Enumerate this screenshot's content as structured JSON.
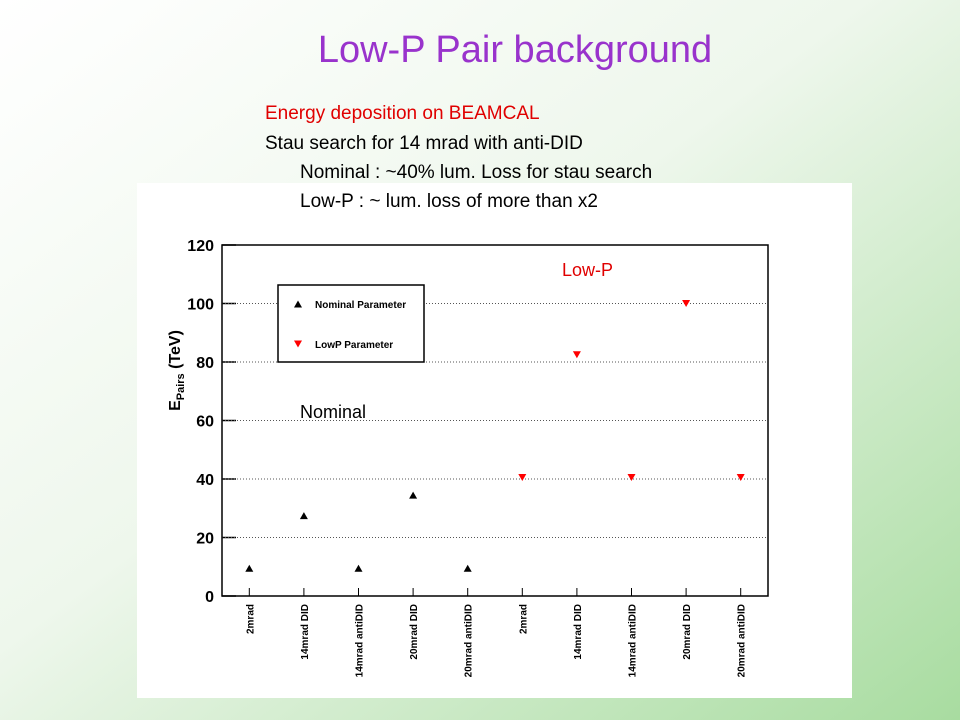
{
  "slide": {
    "title": "Low-P Pair background",
    "lines": [
      "Energy deposition on BEAMCAL",
      "Stau search for 14 mrad with anti-DID",
      "Nominal : ~40% lum. Loss for stau search",
      "Low-P : ~ lum. loss of more than x2"
    ]
  },
  "chart_data": {
    "type": "scatter",
    "categories": [
      "2mrad",
      "14mrad DID",
      "14mrad antiDID",
      "20mrad DID",
      "20mrad antiDID",
      "2mrad",
      "14mrad DID",
      "14mrad antiDID",
      "20mrad DID",
      "20mrad antiDID"
    ],
    "series": [
      {
        "name": "Nominal Parameter",
        "color": "#000000",
        "marker": "triangle-up",
        "values": [
          9.5,
          27.5,
          9.5,
          34.5,
          9.5,
          null,
          null,
          null,
          null,
          null
        ]
      },
      {
        "name": "LowP Parameter",
        "color": "#ff0000",
        "marker": "triangle-down",
        "values": [
          null,
          null,
          null,
          null,
          null,
          40.5,
          82.5,
          40.5,
          100,
          40.5
        ]
      }
    ],
    "ylabel": {
      "main": "E",
      "sub": "Pairs",
      "unit": "(TeV)"
    },
    "ylim": [
      0,
      120
    ],
    "yticks": [
      0,
      20,
      40,
      60,
      80,
      100,
      120
    ],
    "grid": true,
    "annotations": [
      "Low-P",
      "Nominal"
    ]
  }
}
